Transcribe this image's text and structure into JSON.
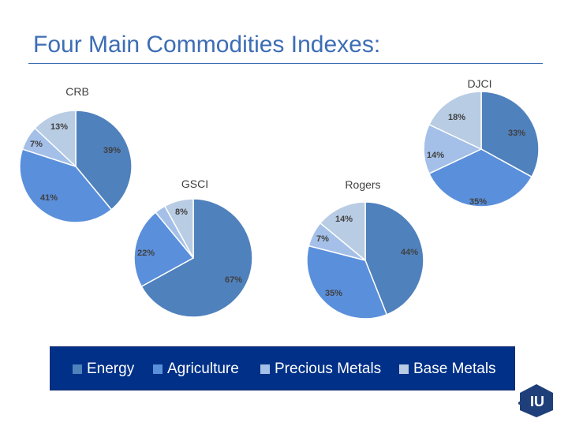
{
  "title": "Four Main Commodities Indexes:",
  "colors": {
    "accent": "#3d6db5",
    "legend_bg": "#003087",
    "energy": "#4f81bd",
    "agriculture": "#5a8fdb",
    "precious_metals": "#a4c0e8",
    "base_metals": "#b8cce4"
  },
  "legend": {
    "items": [
      "Energy",
      "Agriculture",
      "Precious Metals",
      "Base Metals"
    ]
  },
  "logo": {
    "icon": "iu-logo-icon",
    "text": "IU"
  },
  "chart_data": [
    {
      "type": "pie",
      "title": "CRB",
      "categories": [
        "Energy",
        "Agriculture",
        "Precious Metals",
        "Base Metals"
      ],
      "values": [
        39,
        41,
        7,
        13
      ],
      "labels": [
        "39%",
        "41%",
        "7%",
        "13%"
      ]
    },
    {
      "type": "pie",
      "title": "DJCI",
      "categories": [
        "Energy",
        "Agriculture",
        "Precious Metals",
        "Base Metals"
      ],
      "values": [
        33,
        35,
        14,
        18
      ],
      "labels": [
        "33%",
        "35%",
        "14%",
        "18%"
      ]
    },
    {
      "type": "pie",
      "title": "GSCI",
      "categories": [
        "Energy",
        "Agriculture",
        "Precious Metals",
        "Base Metals"
      ],
      "values": [
        67,
        22,
        3,
        8
      ],
      "labels": [
        "67%",
        "22%",
        "",
        "8%"
      ]
    },
    {
      "type": "pie",
      "title": "Rogers",
      "categories": [
        "Energy",
        "Agriculture",
        "Precious Metals",
        "Base Metals"
      ],
      "values": [
        44,
        35,
        7,
        14
      ],
      "labels": [
        "44%",
        "35%",
        "7%",
        "14%"
      ]
    }
  ]
}
